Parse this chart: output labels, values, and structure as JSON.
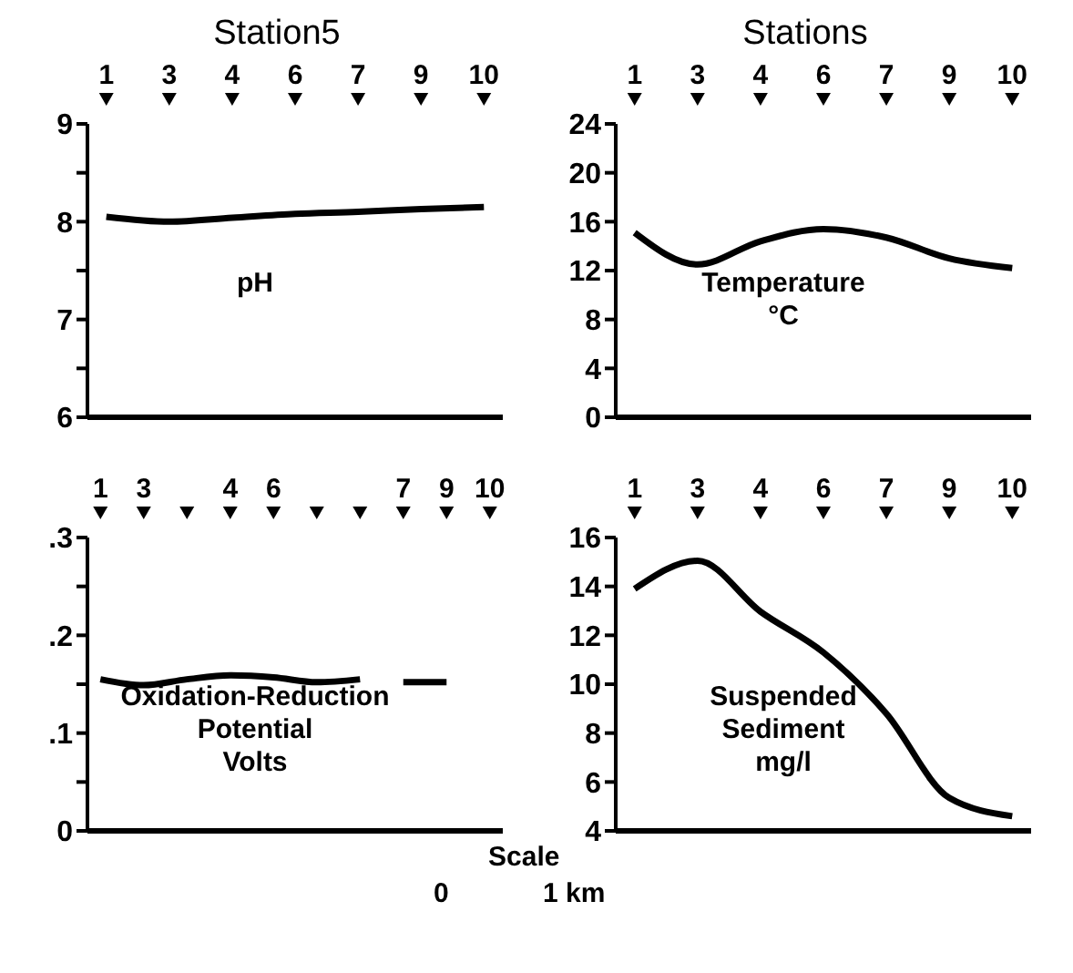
{
  "chart_data": [
    {
      "type": "line",
      "title": "Station5",
      "categories": [
        "1",
        "3",
        "4",
        "6",
        "7",
        "9",
        "10"
      ],
      "values": [
        8.05,
        8.0,
        8.04,
        8.08,
        8.1,
        8.13,
        8.15
      ],
      "color": "#000000",
      "ylim": [
        6,
        9
      ],
      "yticks": [
        6,
        {
          "value": 6.5,
          "label": null
        },
        7,
        {
          "value": 7.5,
          "label": null
        },
        8,
        {
          "value": 8.5,
          "label": null
        },
        9
      ],
      "annotations": [
        "pH"
      ]
    },
    {
      "type": "line",
      "title": "Stations",
      "categories": [
        "1",
        "3",
        "4",
        "6",
        "7",
        "9",
        "10"
      ],
      "values": [
        15.1,
        12.5,
        14.4,
        15.4,
        14.7,
        13.0,
        12.2
      ],
      "color": "#000000",
      "ylim": [
        0,
        24
      ],
      "yticks": [
        0,
        4,
        8,
        12,
        16,
        20,
        24
      ],
      "annotations": [
        "Temperature",
        "°C"
      ]
    },
    {
      "type": "line",
      "categories": [
        "1",
        "3",
        null,
        "4",
        "6",
        null,
        null,
        "7",
        "9",
        "10"
      ],
      "series": [
        {
          "color": "#000000",
          "values": [
            0.155,
            0.149,
            0.155,
            0.159,
            0.157,
            0.152,
            0.155,
            null,
            null,
            null
          ]
        },
        {
          "color": "#000000",
          "values": [
            null,
            null,
            null,
            null,
            null,
            null,
            null,
            0.152,
            0.152,
            null
          ]
        }
      ],
      "ylim": [
        0,
        0.3
      ],
      "yticks": [
        0,
        {
          "value": 0.05,
          "label": null
        },
        {
          "value": 0.1,
          "label": ".1"
        },
        {
          "value": 0.15,
          "label": null
        },
        {
          "value": 0.2,
          "label": ".2"
        },
        {
          "value": 0.25,
          "label": null
        },
        {
          "value": 0.3,
          "label": ".3"
        }
      ],
      "annotations": [
        "Oxidation-Reduction",
        "Potential",
        "Volts"
      ]
    },
    {
      "type": "line",
      "categories": [
        "1",
        "3",
        "4",
        "6",
        "7",
        "9",
        "10"
      ],
      "values": [
        13.9,
        15.05,
        12.97,
        11.3,
        8.8,
        5.35,
        4.6
      ],
      "color": "#000000",
      "ylim": [
        4,
        16
      ],
      "yticks": [
        4,
        6,
        8,
        10,
        12,
        14,
        16
      ],
      "annotations": [
        "Suspended",
        "Sediment",
        "mg/l"
      ]
    },
    {
      "type": "other",
      "annotations": [
        "Scale",
        "0",
        "1 km"
      ]
    }
  ]
}
